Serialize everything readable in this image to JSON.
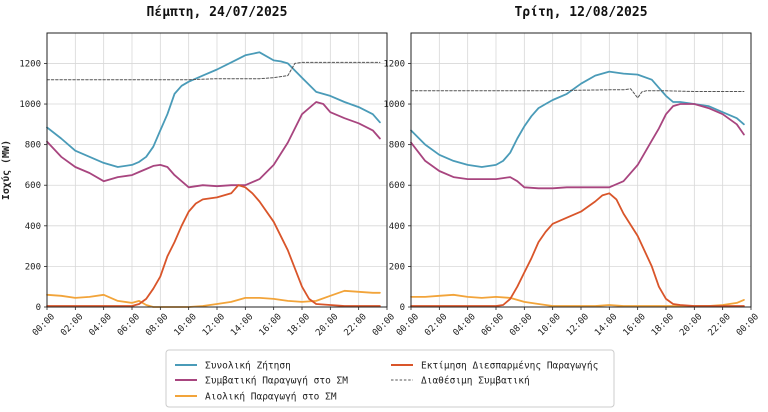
{
  "chart_data": [
    {
      "type": "line",
      "title": "Πέμπτη, 24/07/2025",
      "ylabel": "Ισχύς (MW)",
      "ylim": [
        0,
        1350
      ],
      "yticks": [
        0,
        200,
        400,
        600,
        800,
        1000,
        1200
      ],
      "xlim": [
        0,
        24
      ],
      "xticks": [
        "00:00",
        "02:00",
        "04:00",
        "06:00",
        "08:00",
        "10:00",
        "12:00",
        "14:00",
        "16:00",
        "18:00",
        "20:00",
        "22:00",
        "00:00"
      ],
      "grid": true,
      "series": [
        {
          "name": "Συνολική Ζήτηση",
          "color": "#4a9bb8",
          "style": "solid",
          "x": [
            0,
            1,
            2,
            3,
            4,
            5,
            6,
            6.5,
            7,
            7.5,
            8,
            8.5,
            9,
            9.5,
            10,
            11,
            12,
            13,
            14,
            15,
            16,
            16.5,
            17,
            18,
            19,
            20,
            21,
            22,
            23,
            23.5
          ],
          "y": [
            885,
            830,
            770,
            740,
            710,
            690,
            700,
            715,
            740,
            790,
            870,
            950,
            1050,
            1090,
            1110,
            1140,
            1170,
            1205,
            1240,
            1255,
            1215,
            1210,
            1200,
            1130,
            1060,
            1040,
            1010,
            985,
            950,
            910
          ]
        },
        {
          "name": "Συμβατική Παραγωγή στο ΣΜ",
          "color": "#a8457f",
          "style": "solid",
          "x": [
            0,
            1,
            2,
            3,
            4,
            5,
            6,
            6.5,
            7,
            7.5,
            8,
            8.5,
            9,
            9.5,
            10,
            11,
            12,
            13,
            14,
            15,
            16,
            17,
            18,
            19,
            19.5,
            20,
            21,
            22,
            23,
            23.5
          ],
          "y": [
            815,
            740,
            690,
            660,
            620,
            640,
            650,
            665,
            680,
            695,
            700,
            690,
            650,
            620,
            590,
            600,
            595,
            600,
            600,
            630,
            700,
            810,
            950,
            1010,
            1000,
            960,
            930,
            905,
            870,
            830
          ]
        },
        {
          "name": "Αιολική Παραγωγή στο ΣΜ",
          "color": "#f2a43a",
          "style": "solid",
          "x": [
            0,
            1,
            2,
            3,
            4,
            5,
            6,
            6.5,
            7,
            7.5,
            8,
            9,
            10,
            11,
            12,
            13,
            14,
            15,
            16,
            17,
            18,
            19,
            20,
            21,
            22,
            23,
            23.5
          ],
          "y": [
            60,
            55,
            45,
            50,
            60,
            30,
            20,
            30,
            10,
            0,
            0,
            0,
            0,
            5,
            15,
            25,
            45,
            45,
            40,
            30,
            25,
            30,
            55,
            80,
            75,
            70,
            70
          ]
        },
        {
          "name": "Εκτίμηση Διεσπαρμένης Παραγωγής",
          "color": "#d9552a",
          "style": "solid",
          "x": [
            0,
            1,
            2,
            3,
            4,
            5,
            6,
            6.5,
            7,
            7.5,
            8,
            8.5,
            9,
            9.5,
            10,
            10.5,
            11,
            12,
            13,
            13.5,
            14,
            14.5,
            15,
            16,
            17,
            18,
            18.5,
            19,
            20,
            21,
            22,
            23,
            23.5
          ],
          "y": [
            5,
            5,
            5,
            5,
            5,
            5,
            5,
            15,
            40,
            90,
            150,
            250,
            320,
            400,
            470,
            510,
            530,
            540,
            560,
            600,
            590,
            560,
            520,
            420,
            280,
            100,
            40,
            15,
            10,
            5,
            5,
            5,
            5
          ]
        },
        {
          "name": "Διαθέσιμη Συμβατική",
          "color": "#555555",
          "style": "dashed",
          "x": [
            0,
            2,
            4,
            6,
            8,
            10,
            12,
            14,
            15,
            16,
            17,
            17.5,
            18,
            18.5,
            19,
            20,
            22,
            23.5
          ],
          "y": [
            1120,
            1120,
            1120,
            1120,
            1120,
            1120,
            1125,
            1125,
            1125,
            1130,
            1140,
            1200,
            1205,
            1205,
            1205,
            1205,
            1205,
            1205
          ]
        }
      ]
    },
    {
      "type": "line",
      "title": "Τρίτη, 12/08/2025",
      "ylim": [
        0,
        1350
      ],
      "yticks": [
        0,
        200,
        400,
        600,
        800,
        1000,
        1200
      ],
      "xlim": [
        0,
        24
      ],
      "xticks": [
        "00:00",
        "02:00",
        "04:00",
        "06:00",
        "08:00",
        "10:00",
        "12:00",
        "14:00",
        "16:00",
        "18:00",
        "20:00",
        "22:00",
        "00:00"
      ],
      "grid": true,
      "series": [
        {
          "name": "Συνολική Ζήτηση",
          "color": "#4a9bb8",
          "style": "solid",
          "x": [
            0,
            1,
            2,
            3,
            4,
            5,
            6,
            6.5,
            7,
            7.5,
            8,
            8.5,
            9,
            9.5,
            10,
            11,
            12,
            13,
            14,
            15,
            16,
            17,
            17.5,
            18,
            18.5,
            19,
            20,
            21,
            22,
            23,
            23.5
          ],
          "y": [
            870,
            800,
            750,
            720,
            700,
            690,
            700,
            720,
            760,
            830,
            890,
            940,
            980,
            1000,
            1020,
            1050,
            1100,
            1140,
            1160,
            1150,
            1145,
            1120,
            1080,
            1040,
            1010,
            1010,
            1000,
            990,
            960,
            930,
            900
          ]
        },
        {
          "name": "Συμβατική Παραγωγή στο ΣΜ",
          "color": "#a8457f",
          "style": "solid",
          "x": [
            0,
            1,
            2,
            3,
            4,
            5,
            6,
            6.5,
            7,
            7.5,
            8,
            9,
            10,
            11,
            12,
            13,
            14,
            15,
            16,
            17,
            17.5,
            18,
            18.5,
            19,
            20,
            21,
            22,
            23,
            23.5
          ],
          "y": [
            810,
            720,
            670,
            640,
            630,
            630,
            630,
            635,
            640,
            620,
            590,
            585,
            585,
            590,
            590,
            590,
            590,
            620,
            700,
            820,
            880,
            950,
            990,
            1000,
            1000,
            980,
            950,
            900,
            850
          ]
        },
        {
          "name": "Αιολική Παραγωγή στο ΣΜ",
          "color": "#f2a43a",
          "style": "solid",
          "x": [
            0,
            1,
            2,
            3,
            4,
            5,
            6,
            7,
            7.5,
            8,
            9,
            10,
            11,
            12,
            13,
            14,
            15,
            16,
            17,
            18,
            19,
            20,
            21,
            22,
            23,
            23.5
          ],
          "y": [
            50,
            50,
            55,
            60,
            50,
            45,
            50,
            45,
            35,
            25,
            15,
            5,
            5,
            5,
            5,
            10,
            5,
            5,
            5,
            5,
            5,
            5,
            5,
            10,
            20,
            35
          ]
        },
        {
          "name": "Εκτίμηση Διεσπαρμένης Παραγωγής",
          "color": "#d9552a",
          "style": "solid",
          "x": [
            0,
            1,
            2,
            3,
            4,
            5,
            6,
            6.5,
            7,
            7.5,
            8,
            8.5,
            9,
            9.5,
            10,
            11,
            12,
            13,
            13.5,
            14,
            14.5,
            15,
            16,
            17,
            17.5,
            18,
            18.5,
            19,
            20,
            21,
            22,
            23,
            23.5
          ],
          "y": [
            5,
            5,
            5,
            5,
            5,
            5,
            5,
            10,
            40,
            100,
            170,
            240,
            320,
            370,
            410,
            440,
            470,
            520,
            550,
            560,
            530,
            460,
            350,
            200,
            100,
            40,
            15,
            10,
            5,
            5,
            5,
            5,
            5
          ]
        },
        {
          "name": "Διαθέσιμη Συμβατική",
          "color": "#555555",
          "style": "dashed",
          "x": [
            0,
            2,
            4,
            6,
            8,
            10,
            12,
            14,
            15,
            15.5,
            16,
            16.3,
            16.6,
            17,
            18,
            20,
            22,
            23.5
          ],
          "y": [
            1065,
            1065,
            1065,
            1065,
            1065,
            1065,
            1068,
            1070,
            1070,
            1075,
            1030,
            1060,
            1065,
            1065,
            1065,
            1062,
            1062,
            1062
          ]
        }
      ]
    }
  ],
  "legend": {
    "items": [
      {
        "label": "Συνολική Ζήτηση",
        "color": "#4a9bb8",
        "style": "solid"
      },
      {
        "label": "Συμβατική Παραγωγή στο ΣΜ",
        "color": "#a8457f",
        "style": "solid"
      },
      {
        "label": "Αιολική Παραγωγή στο ΣΜ",
        "color": "#f2a43a",
        "style": "solid"
      },
      {
        "label": "Εκτίμηση Διεσπαρμένης Παραγωγής",
        "color": "#d9552a",
        "style": "solid"
      },
      {
        "label": "Διαθέσιμη Συμβατική",
        "color": "#555555",
        "style": "dashed"
      }
    ]
  }
}
